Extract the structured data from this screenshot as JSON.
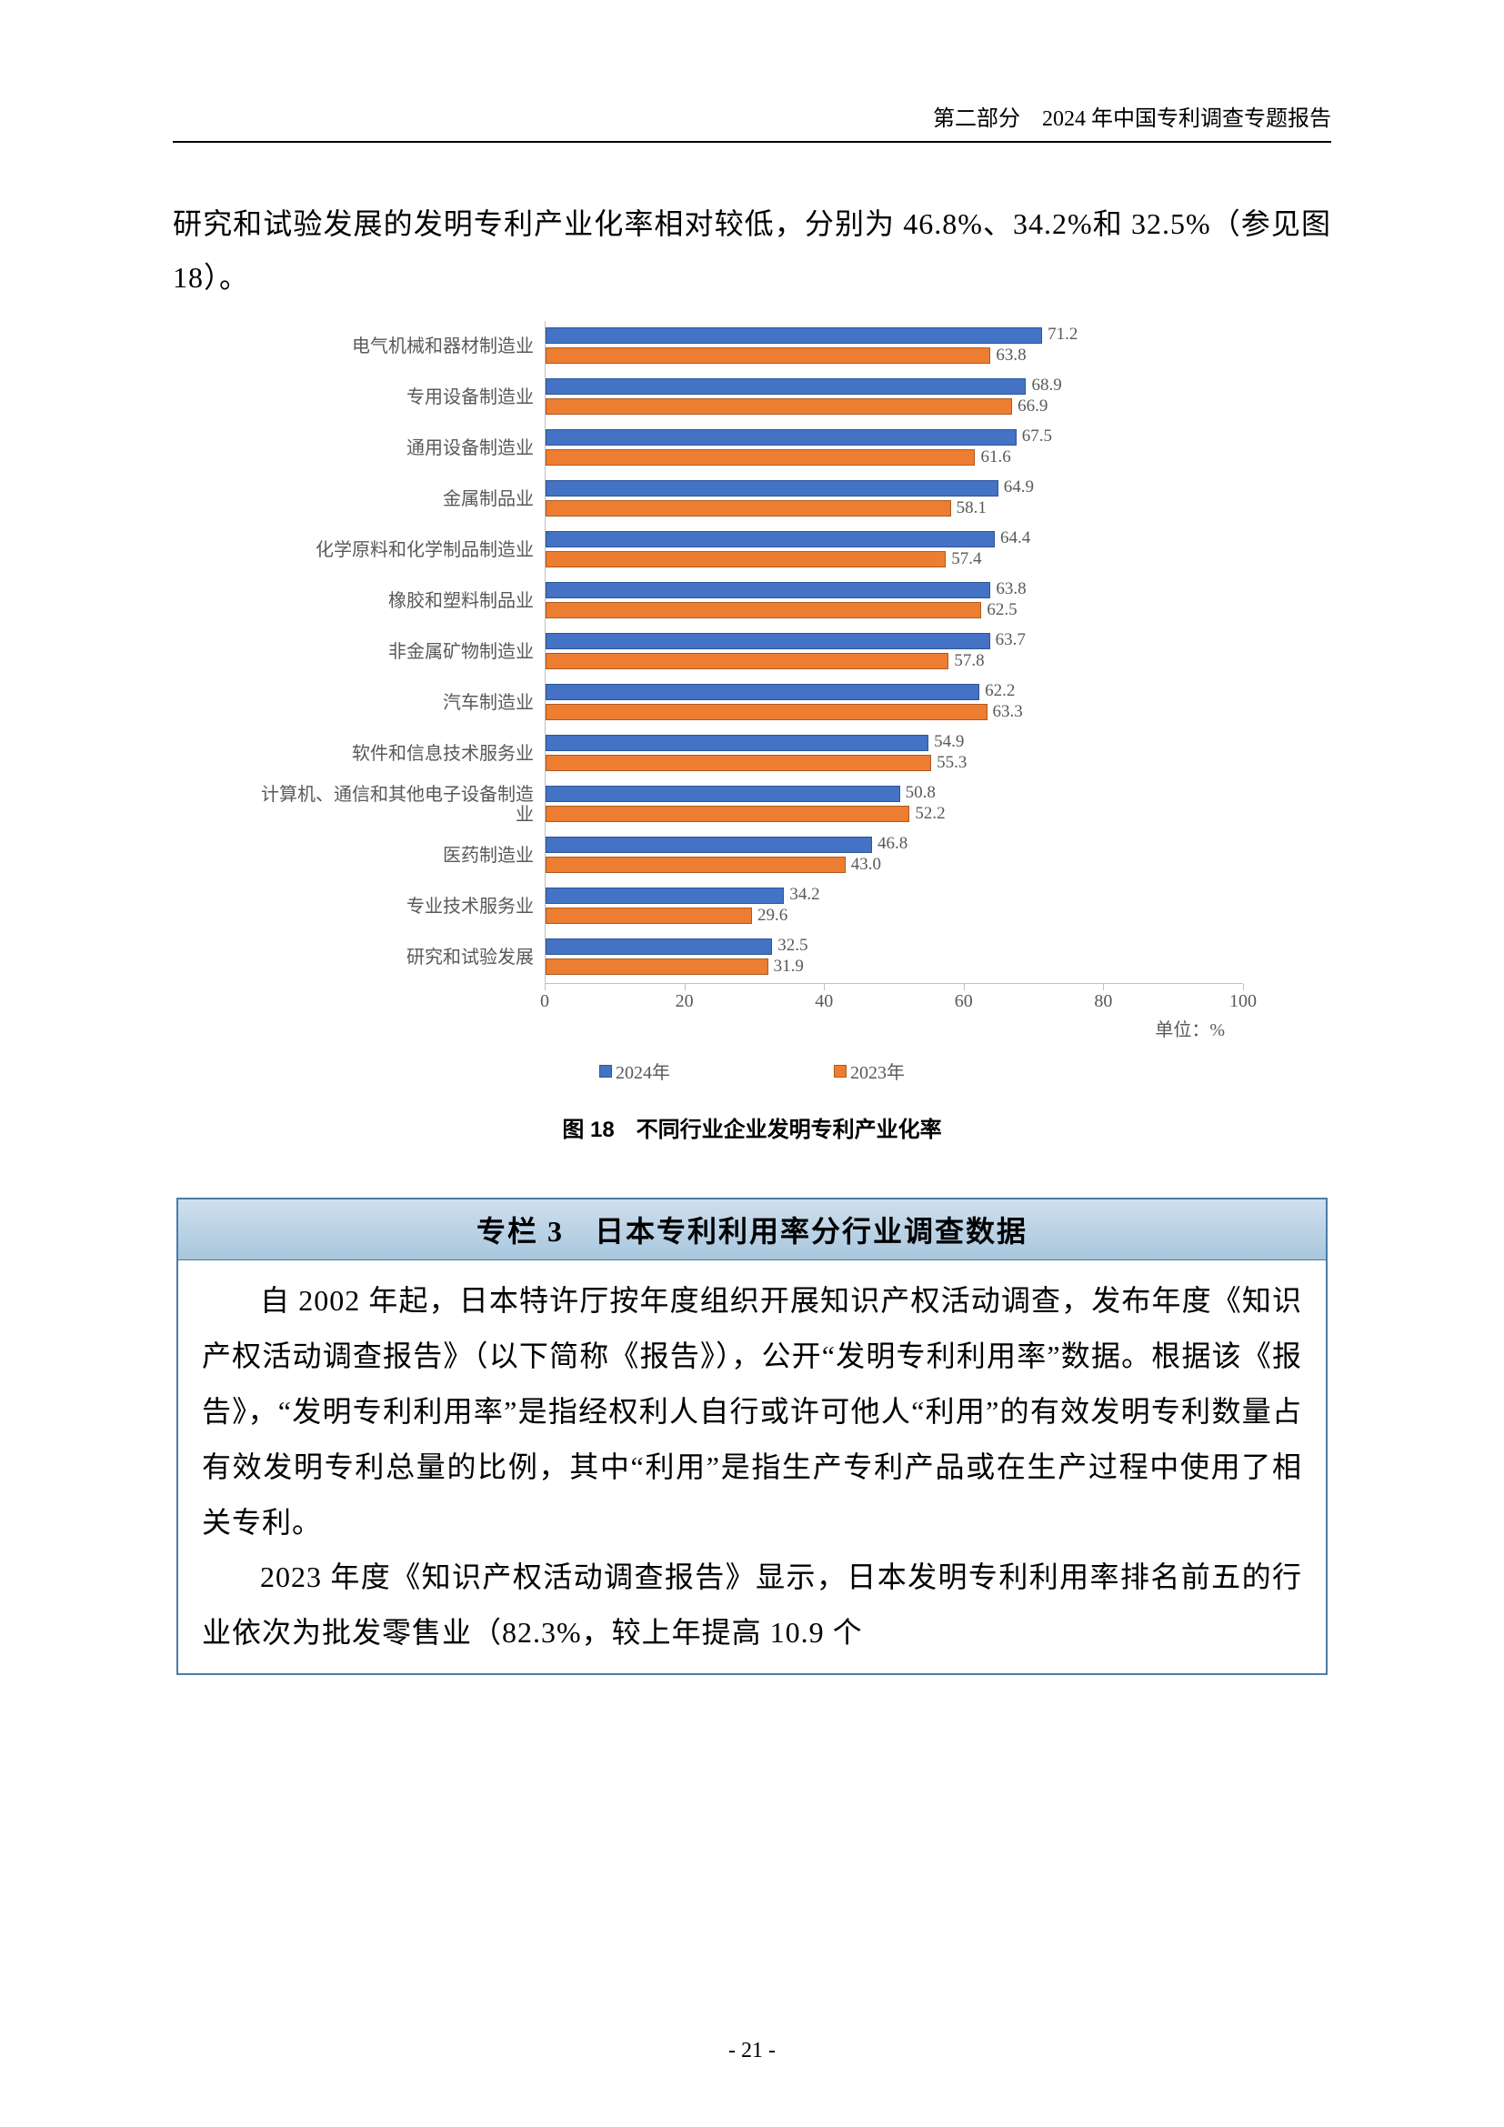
{
  "header": "第二部分　2024 年中国专利调查专题报告",
  "intro_text": "研究和试验发展的发明专利产业化率相对较低，分别为 46.8%、34.2%和 32.5%（参见图 18）。",
  "chart": {
    "type": "grouped-horizontal-bar",
    "x_max": 100,
    "x_ticks": [
      0,
      20,
      40,
      60,
      80,
      100
    ],
    "unit_label": "单位：%",
    "color_2024": "#4472c4",
    "border_2024": "#2e5597",
    "color_2023": "#ed7d31",
    "border_2023": "#ae5a21",
    "tick_color": "#bfbfbf",
    "label_color": "#595959",
    "label_fontsize": 20,
    "categories": [
      {
        "name": "电气机械和器材制造业",
        "v2024": 71.2,
        "v2023": 63.8
      },
      {
        "name": "专用设备制造业",
        "v2024": 68.9,
        "v2023": 66.9
      },
      {
        "name": "通用设备制造业",
        "v2024": 67.5,
        "v2023": 61.6
      },
      {
        "name": "金属制品业",
        "v2024": 64.9,
        "v2023": 58.1
      },
      {
        "name": "化学原料和化学制品制造业",
        "v2024": 64.4,
        "v2023": 57.4
      },
      {
        "name": "橡胶和塑料制品业",
        "v2024": 63.8,
        "v2023": 62.5
      },
      {
        "name": "非金属矿物制造业",
        "v2024": 63.7,
        "v2023": 57.8
      },
      {
        "name": "汽车制造业",
        "v2024": 62.2,
        "v2023": 63.3
      },
      {
        "name": "软件和信息技术服务业",
        "v2024": 54.9,
        "v2023": 55.3
      },
      {
        "name": "计算机、通信和其他电子设备制造业",
        "v2024": 50.8,
        "v2023": 52.2
      },
      {
        "name": "医药制造业",
        "v2024": 46.8,
        "v2023": 43.0
      },
      {
        "name": "专业技术服务业",
        "v2024": 34.2,
        "v2023": 29.6
      },
      {
        "name": "研究和试验发展",
        "v2024": 32.5,
        "v2023": 31.9
      }
    ],
    "legend_2024": "2024年",
    "legend_2023": "2023年",
    "caption": "图 18　不同行业企业发明专利产业化率"
  },
  "column": {
    "title": "专栏 3　日本专利利用率分行业调查数据",
    "para1": "自 2002 年起，日本特许厅按年度组织开展知识产权活动调查，发布年度《知识产权活动调查报告》（以下简称《报告》），公开“发明专利利用率”数据。根据该《报告》，“发明专利利用率”是指经权利人自行或许可他人“利用”的有效发明专利数量占有效发明专利总量的比例，其中“利用”是指生产专利产品或在生产过程中使用了相关专利。",
    "para2": "2023 年度《知识产权活动调查报告》显示，日本发明专利利用率排名前五的行业依次为批发零售业（82.3%，较上年提高 10.9 个"
  },
  "page_number": "- 21 -"
}
